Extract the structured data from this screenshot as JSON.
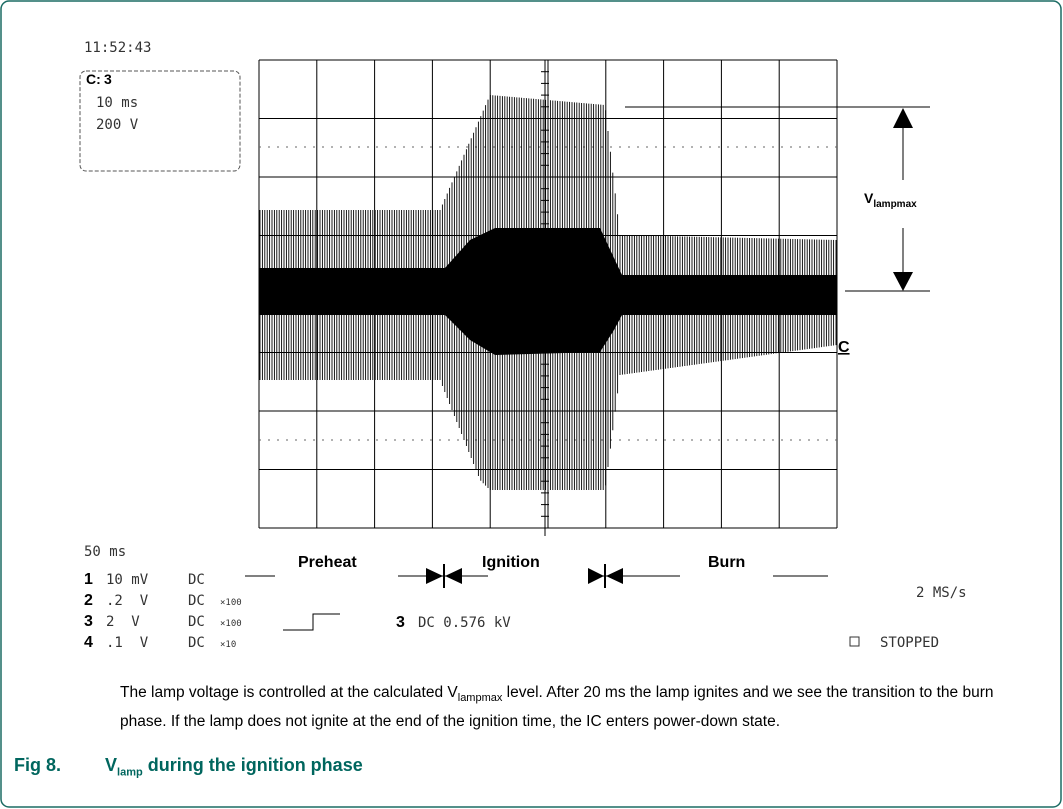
{
  "scope": {
    "time": "11:52:43",
    "box_channel": "C:",
    "box_number": "3",
    "box_time": "10 ms",
    "box_volt": "200 V",
    "timebase": "50 ms",
    "channels": [
      {
        "number": "1",
        "scale": "10 mV",
        "coupling": "DC"
      },
      {
        "number": "2",
        "scale": ".2  V",
        "coupling": "DC",
        "probe": "×100"
      },
      {
        "number": "3",
        "scale": "2  V",
        "coupling": "DC",
        "probe": "×100"
      },
      {
        "number": "4",
        "scale": ".1  V",
        "coupling": "DC",
        "probe": "×10"
      }
    ],
    "trigger_channel": "3",
    "trigger_level": "DC 0.576 kV",
    "sample_rate": "2 MS/s",
    "status": "STOPPED",
    "marker": "C"
  },
  "phases": {
    "preheat": "Preheat",
    "ignition": "Ignition",
    "burn": "Burn"
  },
  "annotation": {
    "symbol": "V",
    "subscript": "lampmax"
  },
  "caption": {
    "before": "The lamp voltage is controlled at the calculated V",
    "subscript": "lampmax",
    "after": " level. After 20 ms the lamp ignites and we see the transition to the burn phase. If the lamp does not ignite at the end of the ignition time, the IC enters power-down state."
  },
  "figure": {
    "label": "Fig 8.",
    "title_symbol": "V",
    "title_subscript": "lamp",
    "title_rest": " during the ignition phase"
  }
}
